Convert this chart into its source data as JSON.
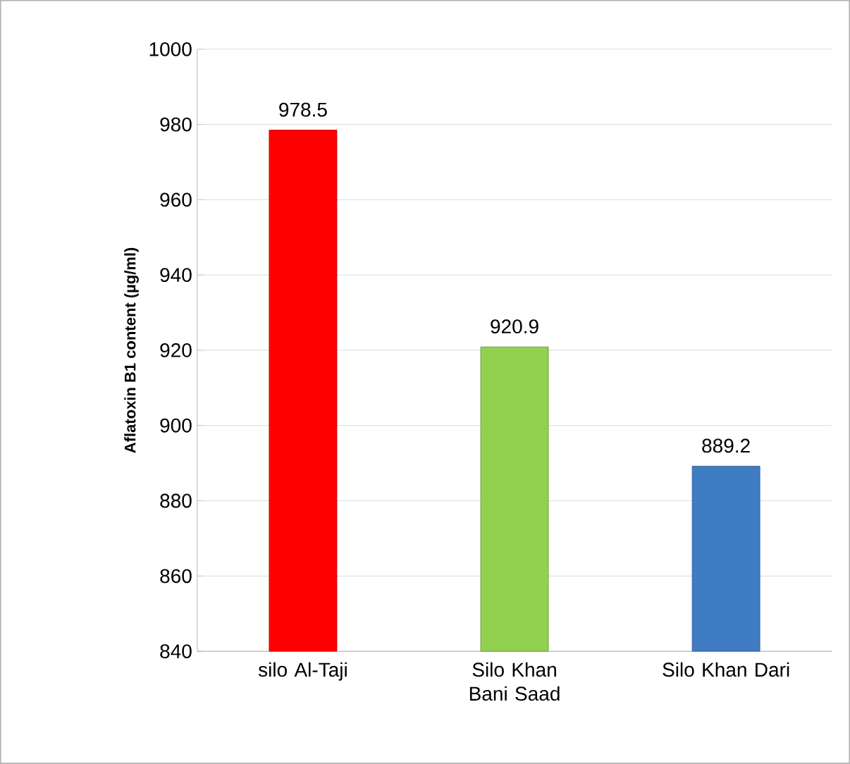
{
  "chart_data": {
    "type": "bar",
    "ylabel": "Aflatoxin B1 content (µg/ml)",
    "categories": [
      "silo Al-Taji",
      "Silo Khan Bani Saad",
      "Silo Khan Dari"
    ],
    "values": [
      978.5,
      920.9,
      889.2
    ],
    "colors": [
      "#ff0000",
      "#92d050",
      "#3f7cc4"
    ],
    "ylim": [
      840,
      1000
    ],
    "yticks": [
      840,
      860,
      880,
      900,
      920,
      940,
      960,
      980,
      1000
    ],
    "grid": "y",
    "data_labels": true
  }
}
